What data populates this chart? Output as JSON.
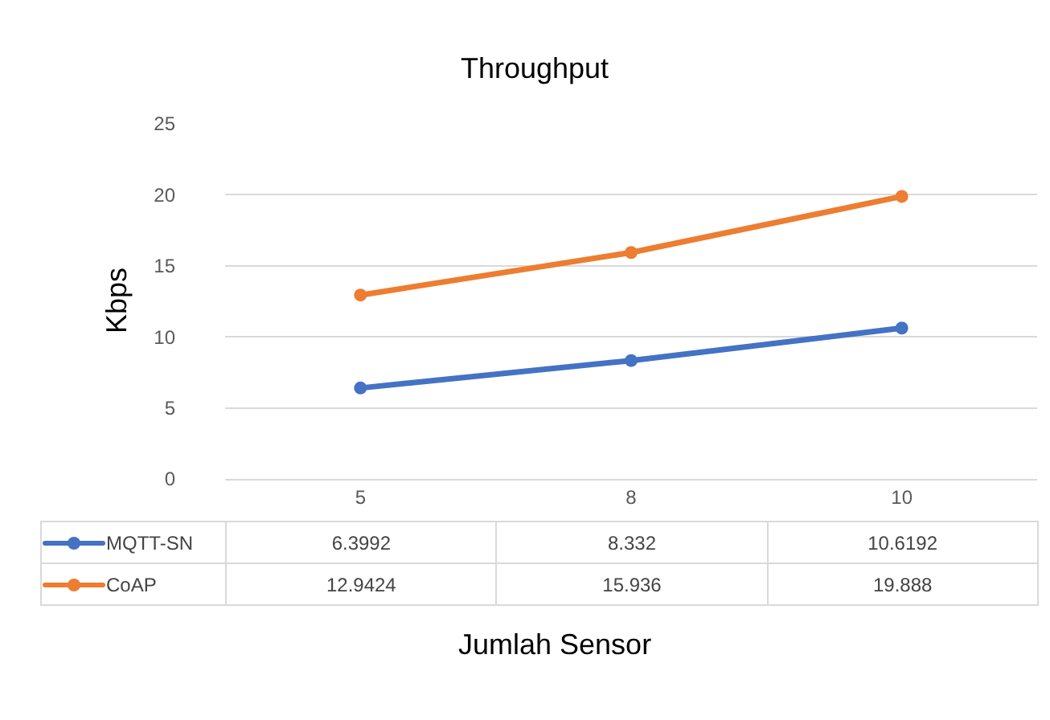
{
  "chart_data": {
    "type": "line",
    "title": "Throughput",
    "xlabel": "Jumlah Sensor",
    "ylabel": "Kbps",
    "categories": [
      "5",
      "8",
      "10"
    ],
    "series": [
      {
        "name": "MQTT-SN",
        "color": "#4472c4",
        "values": [
          6.3992,
          8.332,
          10.6192
        ]
      },
      {
        "name": "CoAP",
        "color": "#ed7d31",
        "values": [
          12.9424,
          15.936,
          19.888
        ]
      }
    ],
    "ylim": [
      0,
      25
    ],
    "yticks": [
      0,
      5,
      10,
      15,
      20,
      25
    ],
    "grid": "y",
    "marker": "circle",
    "line_style": "solid",
    "legend": "bottom",
    "data_labels": true
  }
}
